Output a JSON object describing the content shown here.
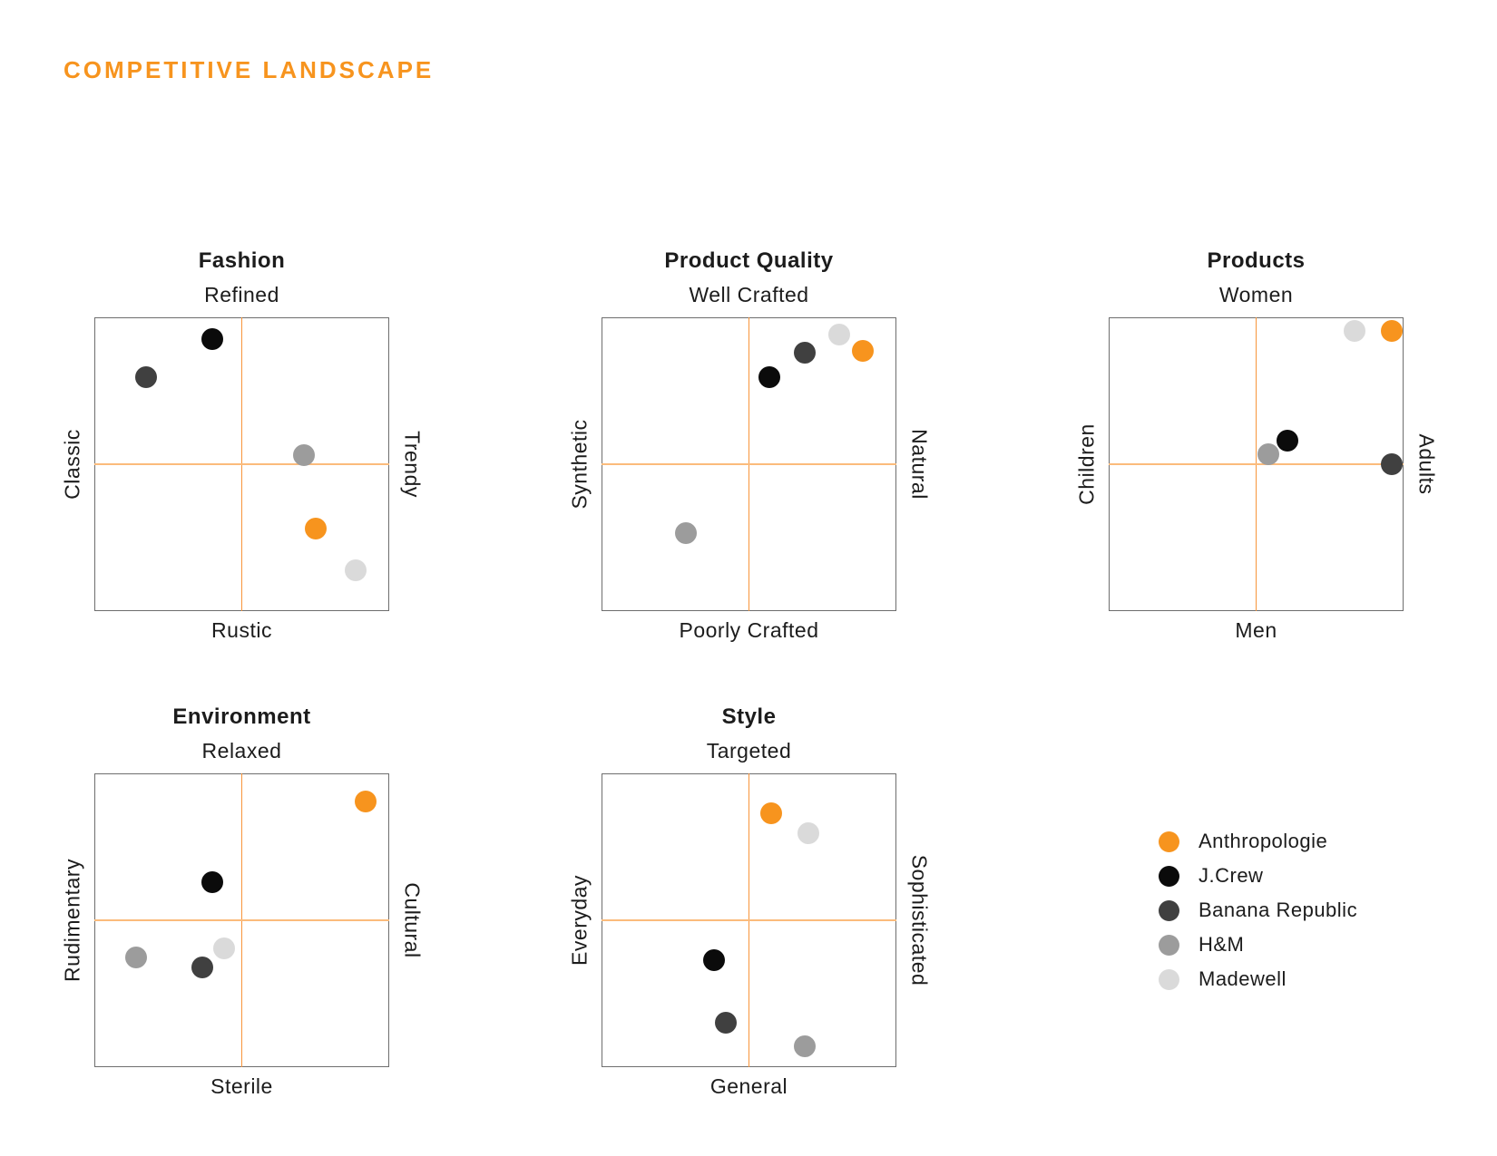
{
  "page_title": "COMPETITIVE LANDSCAPE",
  "colors": {
    "accent": "#F7941E",
    "crosshair_vertical": "#F8953B",
    "crosshair_horizontal": "#FBBB7C",
    "box_border": "#6E6E6E",
    "text": "#1C1C1C"
  },
  "brands": [
    {
      "name": "Anthropologie",
      "color": "#F7941E"
    },
    {
      "name": "J.Crew",
      "color": "#0B0B0B"
    },
    {
      "name": "Banana Republic",
      "color": "#404040"
    },
    {
      "name": "H&M",
      "color": "#9C9C9C"
    },
    {
      "name": "Madewell",
      "color": "#DADADA"
    }
  ],
  "chart_data": [
    {
      "type": "scatter",
      "title": "Fashion",
      "axis": {
        "top": "Refined",
        "bottom": "Rustic",
        "left": "Classic",
        "right": "Trendy"
      },
      "range": {
        "x": [
          -1,
          1
        ],
        "y": [
          -1,
          1
        ]
      },
      "points": [
        {
          "brand": "J.Crew",
          "x": -0.2,
          "y": 0.85
        },
        {
          "brand": "Banana Republic",
          "x": -0.65,
          "y": 0.59
        },
        {
          "brand": "H&M",
          "x": 0.42,
          "y": 0.06
        },
        {
          "brand": "Anthropologie",
          "x": 0.5,
          "y": -0.44
        },
        {
          "brand": "Madewell",
          "x": 0.77,
          "y": -0.72
        }
      ]
    },
    {
      "type": "scatter",
      "title": "Product Quality",
      "axis": {
        "top": "Well Crafted",
        "bottom": "Poorly Crafted",
        "left": "Synthetic",
        "right": "Natural"
      },
      "range": {
        "x": [
          -1,
          1
        ],
        "y": [
          -1,
          1
        ]
      },
      "points": [
        {
          "brand": "J.Crew",
          "x": 0.14,
          "y": 0.59
        },
        {
          "brand": "Banana Republic",
          "x": 0.38,
          "y": 0.76
        },
        {
          "brand": "Madewell",
          "x": 0.61,
          "y": 0.88
        },
        {
          "brand": "Anthropologie",
          "x": 0.77,
          "y": 0.77
        },
        {
          "brand": "H&M",
          "x": -0.43,
          "y": -0.47
        }
      ]
    },
    {
      "type": "scatter",
      "title": "Products",
      "axis": {
        "top": "Women",
        "bottom": "Men",
        "left": "Children",
        "right": "Adults"
      },
      "range": {
        "x": [
          -1,
          1
        ],
        "y": [
          -1,
          1
        ]
      },
      "points": [
        {
          "brand": "Madewell",
          "x": 0.67,
          "y": 0.91
        },
        {
          "brand": "Anthropologie",
          "x": 0.92,
          "y": 0.91
        },
        {
          "brand": "H&M",
          "x": 0.08,
          "y": 0.07
        },
        {
          "brand": "J.Crew",
          "x": 0.21,
          "y": 0.16
        },
        {
          "brand": "Banana Republic",
          "x": 0.92,
          "y": 0.0
        }
      ]
    },
    {
      "type": "scatter",
      "title": "Environment",
      "axis": {
        "top": "Relaxed",
        "bottom": "Sterile",
        "left": "Rudimentary",
        "right": "Cultural"
      },
      "range": {
        "x": [
          -1,
          1
        ],
        "y": [
          -1,
          1
        ]
      },
      "points": [
        {
          "brand": "Anthropologie",
          "x": 0.84,
          "y": 0.81
        },
        {
          "brand": "J.Crew",
          "x": -0.2,
          "y": 0.26
        },
        {
          "brand": "H&M",
          "x": -0.72,
          "y": -0.25
        },
        {
          "brand": "Madewell",
          "x": -0.12,
          "y": -0.19
        },
        {
          "brand": "Banana Republic",
          "x": -0.27,
          "y": -0.32
        }
      ]
    },
    {
      "type": "scatter",
      "title": "Style",
      "axis": {
        "top": "Targeted",
        "bottom": "General",
        "left": "Everyday",
        "right": "Sophisticated"
      },
      "range": {
        "x": [
          -1,
          1
        ],
        "y": [
          -1,
          1
        ]
      },
      "points": [
        {
          "brand": "Anthropologie",
          "x": 0.15,
          "y": 0.73
        },
        {
          "brand": "Madewell",
          "x": 0.4,
          "y": 0.59
        },
        {
          "brand": "J.Crew",
          "x": -0.24,
          "y": -0.27
        },
        {
          "brand": "Banana Republic",
          "x": -0.16,
          "y": -0.7
        },
        {
          "brand": "H&M",
          "x": 0.38,
          "y": -0.86
        }
      ]
    }
  ]
}
